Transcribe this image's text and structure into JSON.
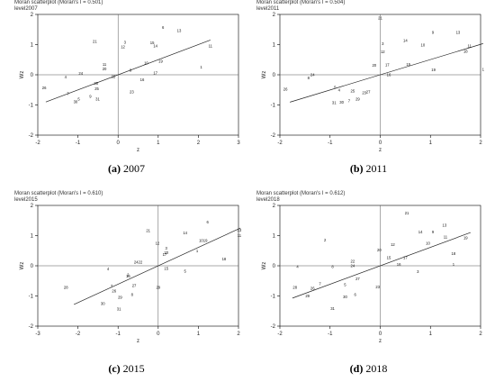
{
  "colors": {
    "axis": "#000000",
    "fit": "#222222",
    "ref": "#555555",
    "text": "#111111"
  },
  "chart_data": [
    {
      "type": "scatter",
      "title": "Moran scatterplot (Moran's I = 0.501)",
      "subtitle": "level2007",
      "xlabel": "z",
      "ylabel": "Wz",
      "xlim": [
        -2,
        3
      ],
      "ylim": [
        -2,
        2
      ],
      "xticks": [
        -2,
        -1,
        0,
        1,
        2,
        3
      ],
      "yticks": [
        -2,
        -1,
        0,
        1,
        2
      ],
      "grid": false,
      "fit": {
        "slope": 0.501,
        "x_range": [
          -1.8,
          2.3
        ]
      },
      "caption_label": "(a)",
      "caption_year": "2007",
      "points": [
        {
          "label": "6",
          "x": 1.12,
          "y": 1.56
        },
        {
          "label": "13",
          "x": 1.52,
          "y": 1.46
        },
        {
          "label": "3",
          "x": 0.17,
          "y": 1.07
        },
        {
          "label": "21",
          "x": -0.58,
          "y": 1.1
        },
        {
          "label": "12",
          "x": 0.12,
          "y": 0.92
        },
        {
          "label": "15",
          "x": 0.85,
          "y": 1.06
        },
        {
          "label": "14",
          "x": 0.93,
          "y": 0.95
        },
        {
          "label": "11",
          "x": 2.3,
          "y": 0.96
        },
        {
          "label": "19",
          "x": 1.06,
          "y": 0.45
        },
        {
          "label": "10",
          "x": 0.7,
          "y": 0.39
        },
        {
          "label": "1",
          "x": 2.07,
          "y": 0.25
        },
        {
          "label": "17",
          "x": 0.93,
          "y": 0.06
        },
        {
          "label": "11",
          "x": -0.34,
          "y": 0.34
        },
        {
          "label": "20",
          "x": -0.34,
          "y": 0.2
        },
        {
          "label": "8",
          "x": 0.31,
          "y": 0.15
        },
        {
          "label": "24",
          "x": -0.93,
          "y": 0.05
        },
        {
          "label": "4",
          "x": -1.31,
          "y": -0.08
        },
        {
          "label": "22",
          "x": -0.12,
          "y": -0.06
        },
        {
          "label": "16",
          "x": 0.6,
          "y": -0.17
        },
        {
          "label": "28",
          "x": -0.55,
          "y": -0.28
        },
        {
          "label": "26",
          "x": -1.84,
          "y": -0.44
        },
        {
          "label": "25",
          "x": -0.53,
          "y": -0.47
        },
        {
          "label": "23",
          "x": 0.34,
          "y": -0.56
        },
        {
          "label": "7",
          "x": -1.25,
          "y": -0.62
        },
        {
          "label": "9",
          "x": -0.69,
          "y": -0.71
        },
        {
          "label": "5",
          "x": -0.98,
          "y": -0.8
        },
        {
          "label": "31",
          "x": -0.51,
          "y": -0.8
        },
        {
          "label": "30",
          "x": -1.06,
          "y": -0.9
        }
      ]
    },
    {
      "type": "scatter",
      "title": "Moran scatterplot (Moran's I = 0.504)",
      "subtitle": "level2011",
      "xlabel": "z",
      "ylabel": "Wz",
      "xlim": [
        -2,
        2
      ],
      "ylim": [
        -2,
        2
      ],
      "xticks": [
        -2,
        -1,
        0,
        1,
        2
      ],
      "yticks": [
        -2,
        -1,
        0,
        1,
        2
      ],
      "grid": false,
      "fit": {
        "slope": 0.504,
        "x_range": [
          -1.8,
          2.05
        ]
      },
      "caption_label": "(b)",
      "caption_year": "2011",
      "points": [
        {
          "label": "21",
          "x": 0.0,
          "y": 1.88
        },
        {
          "label": "9",
          "x": 1.05,
          "y": 1.41
        },
        {
          "label": "13",
          "x": 1.55,
          "y": 1.41
        },
        {
          "label": "14",
          "x": 0.5,
          "y": 1.13
        },
        {
          "label": "3",
          "x": 0.05,
          "y": 1.03
        },
        {
          "label": "10",
          "x": 0.85,
          "y": 0.99
        },
        {
          "label": "12",
          "x": 0.05,
          "y": 0.76
        },
        {
          "label": "11",
          "x": 1.78,
          "y": 0.96
        },
        {
          "label": "18",
          "x": 1.7,
          "y": 0.77
        },
        {
          "label": "20",
          "x": -0.12,
          "y": 0.32
        },
        {
          "label": "17",
          "x": 0.14,
          "y": 0.33
        },
        {
          "label": "15",
          "x": 0.56,
          "y": 0.35
        },
        {
          "label": "19",
          "x": 1.06,
          "y": 0.17
        },
        {
          "label": "1",
          "x": 2.05,
          "y": 0.18
        },
        {
          "label": "16",
          "x": 0.17,
          "y": 0.0
        },
        {
          "label": "24",
          "x": -1.35,
          "y": 0.0
        },
        {
          "label": "8",
          "x": -1.43,
          "y": -0.1
        },
        {
          "label": "5",
          "x": -0.9,
          "y": -0.42
        },
        {
          "label": "26",
          "x": -1.89,
          "y": -0.48
        },
        {
          "label": "4",
          "x": -0.82,
          "y": -0.5
        },
        {
          "label": "25",
          "x": -0.55,
          "y": -0.54
        },
        {
          "label": "27",
          "x": -0.24,
          "y": -0.57
        },
        {
          "label": "23",
          "x": -0.32,
          "y": -0.59
        },
        {
          "label": "29",
          "x": -0.45,
          "y": -0.8
        },
        {
          "label": "7",
          "x": -0.62,
          "y": -0.87
        },
        {
          "label": "31",
          "x": -0.92,
          "y": -0.92
        },
        {
          "label": "30",
          "x": -0.77,
          "y": -0.91
        }
      ]
    },
    {
      "type": "scatter",
      "title": "Moran scatterplot (Moran's I = 0.610)",
      "subtitle": "level2015",
      "xlabel": "z",
      "ylabel": "Wz",
      "xlim": [
        -3,
        2
      ],
      "ylim": [
        -2,
        2
      ],
      "xticks": [
        -3,
        -2,
        -1,
        0,
        1,
        2
      ],
      "yticks": [
        -2,
        -1,
        0,
        1,
        2
      ],
      "grid": false,
      "fit": {
        "slope": 0.61,
        "x_range": [
          -2.1,
          2.05
        ]
      },
      "caption_label": "(c)",
      "caption_year": "2015",
      "points": [
        {
          "label": "6",
          "x": 1.23,
          "y": 1.45
        },
        {
          "label": "13",
          "x": 2.02,
          "y": 1.18
        },
        {
          "label": "21",
          "x": -0.25,
          "y": 1.16
        },
        {
          "label": "14",
          "x": 0.67,
          "y": 1.09
        },
        {
          "label": "11",
          "x": 2.02,
          "y": 1.0
        },
        {
          "label": "1019",
          "x": 1.12,
          "y": 0.83
        },
        {
          "label": "12",
          "x": -0.02,
          "y": 0.75
        },
        {
          "label": "3",
          "x": 0.2,
          "y": 0.58
        },
        {
          "label": "20",
          "x": 0.2,
          "y": 0.44
        },
        {
          "label": "17",
          "x": 0.16,
          "y": 0.37
        },
        {
          "label": "1",
          "x": 0.97,
          "y": 0.5
        },
        {
          "label": "18",
          "x": 1.64,
          "y": 0.22
        },
        {
          "label": "2422",
          "x": -0.5,
          "y": 0.12
        },
        {
          "label": "4",
          "x": -1.25,
          "y": -0.1
        },
        {
          "label": "15",
          "x": 0.2,
          "y": -0.09
        },
        {
          "label": "5",
          "x": 0.67,
          "y": -0.18
        },
        {
          "label": "16",
          "x": -0.75,
          "y": -0.35
        },
        {
          "label": "2",
          "x": -0.75,
          "y": -0.3
        },
        {
          "label": "28",
          "x": -2.3,
          "y": -0.72
        },
        {
          "label": "7",
          "x": -1.16,
          "y": -0.67
        },
        {
          "label": "26",
          "x": -1.1,
          "y": -0.83
        },
        {
          "label": "27",
          "x": -0.6,
          "y": -0.66
        },
        {
          "label": "29",
          "x": 0.0,
          "y": -0.72
        },
        {
          "label": "8",
          "x": -0.65,
          "y": -0.95
        },
        {
          "label": "29",
          "x": -0.95,
          "y": -1.05
        },
        {
          "label": "30",
          "x": -1.38,
          "y": -1.25
        },
        {
          "label": "31",
          "x": -0.98,
          "y": -1.43
        }
      ]
    },
    {
      "type": "scatter",
      "title": "Moran scatterplot (Moran's I = 0.612)",
      "subtitle": "level2018",
      "xlabel": "z",
      "ylabel": "Wz",
      "xlim": [
        -2,
        2
      ],
      "ylim": [
        -2,
        2
      ],
      "xticks": [
        -2,
        -1,
        0,
        1,
        2
      ],
      "yticks": [
        -2,
        -1,
        0,
        1,
        2
      ],
      "grid": false,
      "fit": {
        "slope": 0.612,
        "x_range": [
          -1.75,
          1.8
        ]
      },
      "caption_label": "(d)",
      "caption_year": "2018",
      "points": [
        {
          "label": "21",
          "x": 0.53,
          "y": 1.75
        },
        {
          "label": "13",
          "x": 1.28,
          "y": 1.35
        },
        {
          "label": "14",
          "x": 0.8,
          "y": 1.12
        },
        {
          "label": "9",
          "x": 1.05,
          "y": 1.12
        },
        {
          "label": "11",
          "x": 1.3,
          "y": 0.95
        },
        {
          "label": "19",
          "x": 1.7,
          "y": 0.93
        },
        {
          "label": "2",
          "x": -1.1,
          "y": 0.85
        },
        {
          "label": "10",
          "x": 0.95,
          "y": 0.75
        },
        {
          "label": "12",
          "x": 0.25,
          "y": 0.7
        },
        {
          "label": "20",
          "x": -0.02,
          "y": 0.52
        },
        {
          "label": "18",
          "x": 1.46,
          "y": 0.4
        },
        {
          "label": "22",
          "x": -0.55,
          "y": 0.15
        },
        {
          "label": "15",
          "x": 0.17,
          "y": 0.27
        },
        {
          "label": "17",
          "x": 0.5,
          "y": 0.27
        },
        {
          "label": "24",
          "x": -0.55,
          "y": 0.0
        },
        {
          "label": "4",
          "x": -1.65,
          "y": -0.03
        },
        {
          "label": "16",
          "x": 0.37,
          "y": 0.05
        },
        {
          "label": "1",
          "x": 1.46,
          "y": 0.05
        },
        {
          "label": "8",
          "x": -0.95,
          "y": -0.03
        },
        {
          "label": "3",
          "x": 0.75,
          "y": -0.2
        },
        {
          "label": "27",
          "x": -0.45,
          "y": -0.44
        },
        {
          "label": "7",
          "x": -1.2,
          "y": -0.59
        },
        {
          "label": "5",
          "x": -0.7,
          "y": -0.62
        },
        {
          "label": "28",
          "x": -1.7,
          "y": -0.71
        },
        {
          "label": "23",
          "x": -0.05,
          "y": -0.7
        },
        {
          "label": "26",
          "x": -1.35,
          "y": -0.75
        },
        {
          "label": "29",
          "x": -1.45,
          "y": -1.0
        },
        {
          "label": "6",
          "x": -0.5,
          "y": -0.96
        },
        {
          "label": "30",
          "x": -0.7,
          "y": -1.03
        },
        {
          "label": "31",
          "x": -0.95,
          "y": -1.42
        }
      ]
    }
  ]
}
